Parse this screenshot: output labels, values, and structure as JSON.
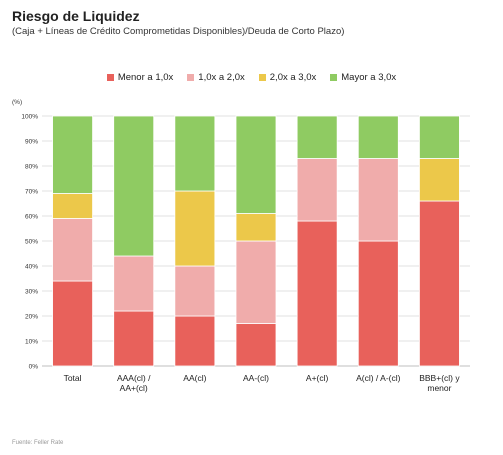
{
  "title": "Riesgo de Liquidez",
  "subtitle": "(Caja + Líneas de Crédito Comprometidas Disponibles)/Deuda de Corto Plazo)",
  "footer": "Fuente: Feller Rate",
  "chart_data": {
    "type": "bar",
    "stacked": true,
    "ylabel": "(%)",
    "ylim": [
      0,
      100
    ],
    "yticks": [
      "0%",
      "10%",
      "20%",
      "30%",
      "40%",
      "50%",
      "60%",
      "70%",
      "80%",
      "90%",
      "100%"
    ],
    "categories": [
      [
        "Total"
      ],
      [
        "AAA(cl) /",
        "AA+(cl)"
      ],
      [
        "AA(cl)"
      ],
      [
        "AA-(cl)"
      ],
      [
        "A+(cl)"
      ],
      [
        "A(cl) / A-(cl)"
      ],
      [
        "BBB+(cl) y",
        "menor"
      ]
    ],
    "series": [
      {
        "name": "Menor a 1,0x",
        "color": "#e8615b",
        "values": [
          34,
          22,
          20,
          17,
          58,
          50,
          66
        ]
      },
      {
        "name": "1,0x a 2,0x",
        "color": "#f0acab",
        "values": [
          25,
          22,
          20,
          33,
          25,
          33,
          0
        ]
      },
      {
        "name": "2,0x a 3,0x",
        "color": "#ecc84a",
        "values": [
          10,
          0,
          30,
          11,
          0,
          0,
          17
        ]
      },
      {
        "name": "Mayor a 3,0x",
        "color": "#8fcb62",
        "values": [
          31,
          56,
          30,
          39,
          17,
          17,
          17
        ]
      }
    ],
    "legend_position": "top",
    "grid": true
  }
}
